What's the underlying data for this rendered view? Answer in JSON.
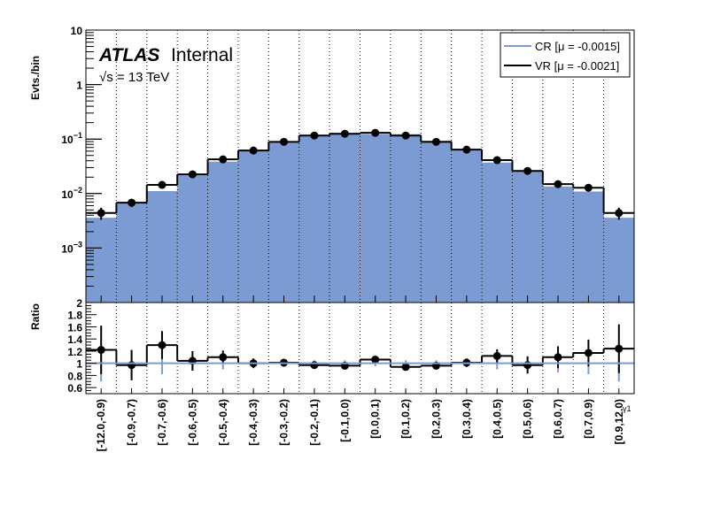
{
  "chart_data": [
    {
      "type": "bar",
      "title": "",
      "panel": "main",
      "ylabel": "Evts./bin",
      "yscale": "log",
      "ylim": [
        0.0001,
        10
      ],
      "yticks": [
        {
          "value": 10,
          "base": "10",
          "exp": ""
        },
        {
          "value": 1,
          "base": "1",
          "exp": ""
        },
        {
          "value": 0.1,
          "base": "10",
          "exp": "−1"
        },
        {
          "value": 0.01,
          "base": "10",
          "exp": "−2"
        },
        {
          "value": 0.001,
          "base": "10",
          "exp": "−3"
        }
      ],
      "categories": [
        "[-12.0,-0.9)",
        "[-0.9,-0.7)",
        "[-0.7,-0.6)",
        "[-0.6,-0.5)",
        "[-0.5,-0.4)",
        "[-0.4,-0.3)",
        "[-0.3,-0.2)",
        "[-0.2,-0.1)",
        "[-0.1,0.0)",
        "[0.0,0.1)",
        "[0.1,0.2)",
        "[0.2,0.3)",
        "[0.3,0.4)",
        "[0.4,0.5)",
        "[0.5,0.6)",
        "[0.6,0.7)",
        "[0.7,0.9)",
        "[0.9,12.0)"
      ],
      "series": [
        {
          "name": "CR [μ = -0.0015]",
          "style": "filled-histogram",
          "color": "#7b9bd2",
          "values": [
            0.0036,
            0.007,
            0.0111,
            0.0216,
            0.0385,
            0.0616,
            0.088,
            0.12,
            0.13,
            0.123,
            0.123,
            0.093,
            0.063,
            0.037,
            0.0268,
            0.0135,
            0.0109,
            0.0036
          ]
        },
        {
          "name": "VR [μ = -0.0021]",
          "style": "step-with-points",
          "color": "#000000",
          "values": [
            0.0044,
            0.0068,
            0.0144,
            0.0225,
            0.0424,
            0.0616,
            0.089,
            0.116,
            0.125,
            0.13,
            0.116,
            0.089,
            0.064,
            0.041,
            0.026,
            0.0149,
            0.0128,
            0.0044
          ],
          "rel_errors": [
            0.25,
            0.17,
            0.09,
            0.07,
            0.05,
            0.04,
            0.03,
            0.03,
            0.03,
            0.03,
            0.03,
            0.03,
            0.04,
            0.06,
            0.08,
            0.11,
            0.15,
            0.25
          ]
        }
      ],
      "annotations": {
        "experiment": "ATLAS",
        "status": "Internal",
        "energy": "√s = 13 TeV"
      },
      "legend_placement": "top-right",
      "grid": "vertical dotted at bin edges"
    },
    {
      "type": "line",
      "panel": "ratio",
      "ylabel": "Ratio",
      "xlabel": "γ1",
      "ylim": [
        0.5,
        2
      ],
      "yticks": [
        "0.6",
        "0.8",
        "1",
        "1.2",
        "1.4",
        "1.6",
        "1.8",
        "2"
      ],
      "reference": 1,
      "values": [
        1.22,
        0.97,
        1.3,
        1.04,
        1.1,
        1.0,
        1.01,
        0.97,
        0.96,
        1.06,
        0.94,
        0.96,
        1.01,
        1.12,
        0.97,
        1.1,
        1.17,
        1.24
      ],
      "errors": [
        0.4,
        0.25,
        0.23,
        0.16,
        0.11,
        0.08,
        0.06,
        0.05,
        0.05,
        0.05,
        0.05,
        0.06,
        0.07,
        0.11,
        0.14,
        0.18,
        0.22,
        0.4
      ],
      "cr_errors": [
        0.3,
        0.2,
        0.18,
        0.12,
        0.1,
        0.06,
        0.05,
        0.05,
        0.05,
        0.05,
        0.05,
        0.05,
        0.06,
        0.1,
        0.12,
        0.15,
        0.18,
        0.3
      ]
    }
  ]
}
